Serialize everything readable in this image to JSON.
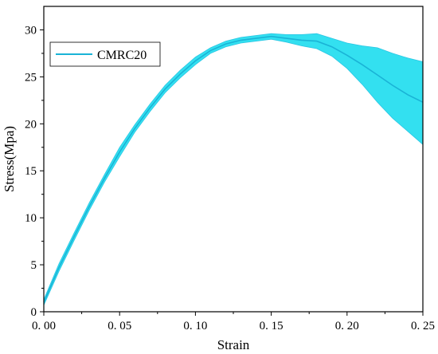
{
  "chart_data": {
    "type": "line",
    "title": "",
    "xlabel": "Strain",
    "ylabel": "Stress(Mpa)",
    "xlim": [
      0.0,
      0.25
    ],
    "ylim": [
      0,
      32.5
    ],
    "xticks": [
      0.0,
      0.05,
      0.1,
      0.15,
      0.2,
      0.25
    ],
    "xtick_labels": [
      "0. 00",
      "0. 05",
      "0. 10",
      "0. 15",
      "0. 20",
      "0. 25"
    ],
    "yticks": [
      0,
      5,
      10,
      15,
      20,
      25,
      30
    ],
    "ytick_labels": [
      "0",
      "5",
      "10",
      "15",
      "20",
      "25",
      "30"
    ],
    "grid": false,
    "legend_position": "top-left",
    "series": [
      {
        "name": "CMRC20",
        "color": "#1ab3d6",
        "band_color": "#33e0f0",
        "x": [
          0.0,
          0.01,
          0.02,
          0.03,
          0.04,
          0.05,
          0.06,
          0.07,
          0.08,
          0.09,
          0.1,
          0.11,
          0.12,
          0.13,
          0.14,
          0.15,
          0.16,
          0.17,
          0.18,
          0.19,
          0.2,
          0.21,
          0.22,
          0.23,
          0.24,
          0.25
        ],
        "mean": [
          1.0,
          4.7,
          8.0,
          11.2,
          14.2,
          17.0,
          19.5,
          21.7,
          23.7,
          25.3,
          26.7,
          27.8,
          28.5,
          28.9,
          29.1,
          29.3,
          29.1,
          28.9,
          28.8,
          28.2,
          27.3,
          26.3,
          25.2,
          24.1,
          23.1,
          22.3
        ],
        "upper": [
          1.3,
          5.1,
          8.4,
          11.6,
          14.6,
          17.5,
          19.9,
          22.1,
          24.1,
          25.7,
          27.1,
          28.1,
          28.8,
          29.2,
          29.4,
          29.6,
          29.5,
          29.5,
          29.6,
          29.1,
          28.6,
          28.3,
          28.1,
          27.5,
          27.0,
          26.6
        ],
        "lower": [
          0.7,
          4.3,
          7.6,
          10.8,
          13.8,
          16.5,
          19.1,
          21.3,
          23.3,
          24.9,
          26.3,
          27.5,
          28.2,
          28.6,
          28.8,
          29.0,
          28.7,
          28.3,
          28.0,
          27.2,
          25.9,
          24.2,
          22.3,
          20.6,
          19.2,
          17.8
        ]
      }
    ]
  }
}
